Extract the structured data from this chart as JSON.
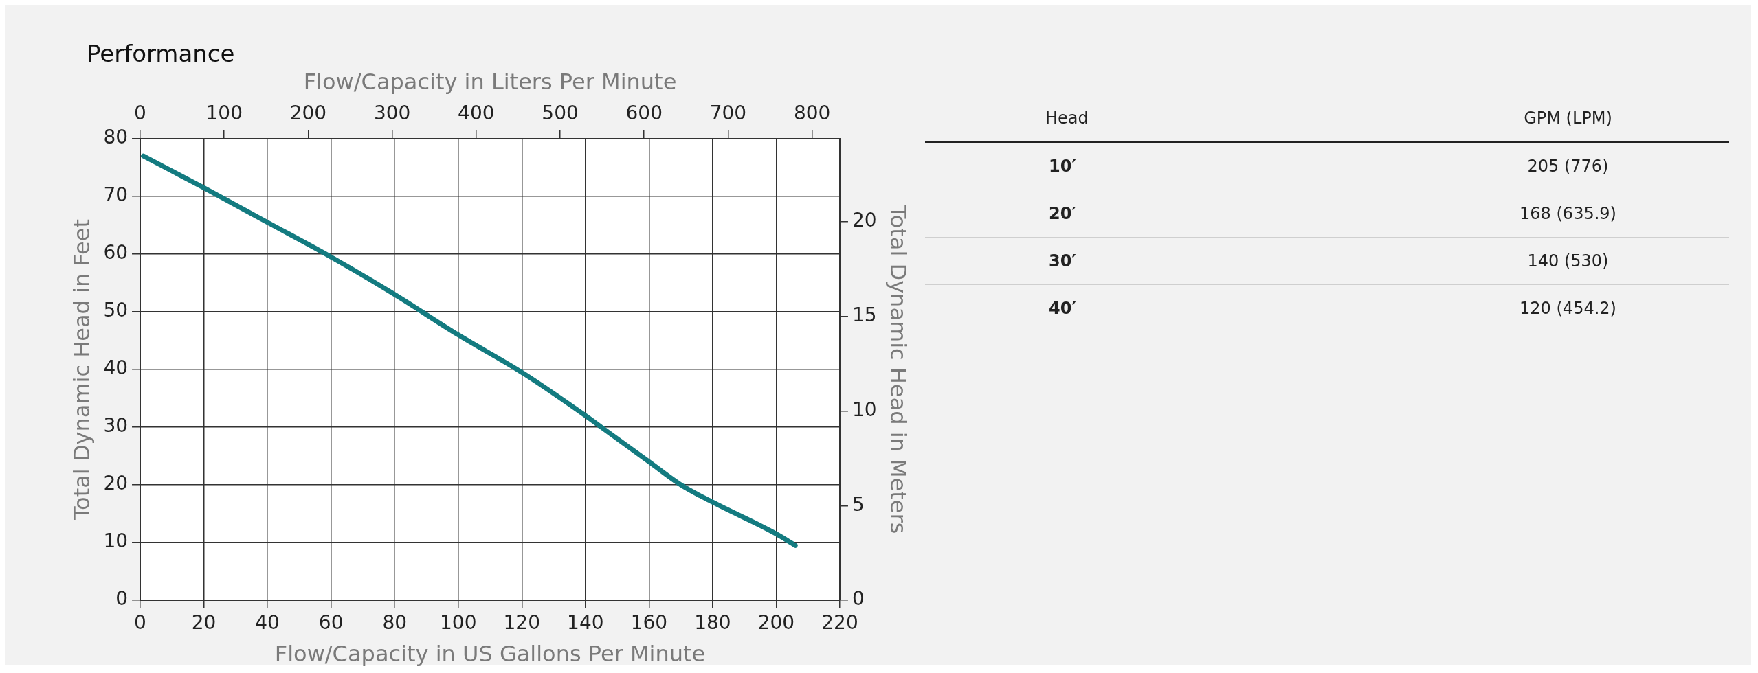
{
  "chart_data": [
    {
      "type": "line",
      "title": "Performance",
      "xlabel": "Flow/Capacity in US Gallons Per Minute",
      "x2label": "Flow/Capacity in Liters Per Minute",
      "ylabel": "Total Dynamic Head in Feet",
      "y2label": "Total Dynamic Head in Meters",
      "xlim": [
        0,
        220
      ],
      "xticks": [
        0,
        20,
        40,
        60,
        80,
        100,
        120,
        140,
        160,
        180,
        200,
        220
      ],
      "x2lim": [
        0,
        833
      ],
      "x2ticks": [
        0,
        100,
        200,
        300,
        400,
        500,
        600,
        700,
        800
      ],
      "ylim": [
        0,
        80
      ],
      "yticks": [
        0,
        10,
        20,
        30,
        40,
        50,
        60,
        70,
        80
      ],
      "y2lim": [
        0,
        24.4
      ],
      "y2ticks": [
        0,
        5,
        10,
        15,
        20
      ],
      "annotations": [
        "Head",
        "GPM (LPM)",
        "10′",
        "205 (776)",
        "20′",
        "168 (635.9)",
        "30′",
        "140 (530)",
        "40′",
        "120 (454.2)"
      ],
      "grid": true,
      "legend": false,
      "marker": "none",
      "line_style": "solid",
      "series": [
        {
          "color": "#137b80",
          "x": [
            1,
            20,
            40,
            60,
            80,
            100,
            120,
            140,
            145,
            160,
            170,
            180,
            200,
            206
          ],
          "values": [
            77,
            71.5,
            65.5,
            59.5,
            53,
            46,
            39.5,
            32,
            30,
            24,
            20,
            17,
            11.5,
            9.5
          ]
        }
      ]
    }
  ]
}
